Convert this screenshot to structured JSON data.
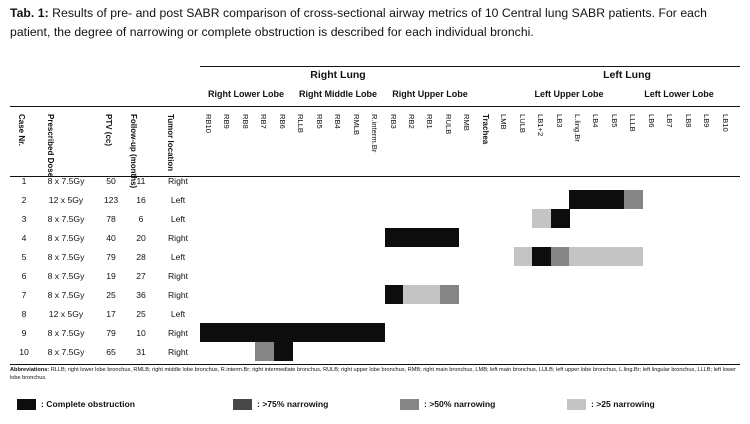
{
  "caption": {
    "label": "Tab. 1:",
    "text": " Results of pre- and post SABR comparison of cross-sectional airway metrics of 10 Central lung SABR patients. For each patient, the degree of narrowing or complete obstruction is described for each individual bronchi."
  },
  "colors": {
    "complete": "#0d0d0d",
    "n75": "#474747",
    "n50": "#858585",
    "n25": "#c4c4c4"
  },
  "groups": {
    "right_lung": "Right Lung",
    "left_lung": "Left Lung",
    "right_lower": "Right Lower Lobe",
    "right_middle": "Right Middle Lobe",
    "right_upper": "Right Upper Lobe",
    "left_upper": "Left Upper Lobe",
    "left_lower": "Left Lower Lobe"
  },
  "headers": {
    "case": "Case Nr.",
    "dose": "Prescribed Dose",
    "ptv": "PTV (cc)",
    "followup": "Follow-up (months)",
    "location": "Tumor location"
  },
  "bronchi": [
    "RB10",
    "RB9",
    "RB8",
    "RB7",
    "RB6",
    "RLLB",
    "RB5",
    "RB4",
    "RMLB",
    "R.interm.Br",
    "RB3",
    "RB2",
    "RB1",
    "RULB",
    "RMB",
    "Trachea",
    "LMB",
    "LULB",
    "LB1+2",
    "LB3",
    "L.ling.Br",
    "LB4",
    "LB5",
    "LLLB",
    "LB6",
    "LB7",
    "LB8",
    "LB9",
    "LB10"
  ],
  "patients": [
    {
      "case": "1",
      "dose": "8 x 7.5Gy",
      "ptv": "50",
      "followup": "11",
      "location": "Right",
      "cells": []
    },
    {
      "case": "2",
      "dose": "12 x 5Gy",
      "ptv": "123",
      "followup": "16",
      "location": "Left",
      "cells": [
        [
          "L.ling.Br",
          "complete"
        ],
        [
          "LB4",
          "complete"
        ],
        [
          "LB5",
          "complete"
        ],
        [
          "LLLB",
          "n50"
        ]
      ]
    },
    {
      "case": "3",
      "dose": "8 x 7.5Gy",
      "ptv": "78",
      "followup": "6",
      "location": "Left",
      "cells": [
        [
          "LB1+2",
          "n25"
        ],
        [
          "LB3",
          "complete"
        ]
      ]
    },
    {
      "case": "4",
      "dose": "8 x 7.5Gy",
      "ptv": "40",
      "followup": "20",
      "location": "Right",
      "cells": [
        [
          "RB3",
          "complete"
        ],
        [
          "RB2",
          "complete"
        ],
        [
          "RB1",
          "complete"
        ],
        [
          "RULB",
          "complete"
        ]
      ]
    },
    {
      "case": "5",
      "dose": "8 x 7.5Gy",
      "ptv": "79",
      "followup": "28",
      "location": "Left",
      "cells": [
        [
          "LULB",
          "n25"
        ],
        [
          "LB1+2",
          "complete"
        ],
        [
          "LB3",
          "n50"
        ],
        [
          "L.ling.Br",
          "n25"
        ],
        [
          "LB4",
          "n25"
        ],
        [
          "LB5",
          "n25"
        ],
        [
          "LLLB",
          "n25"
        ]
      ]
    },
    {
      "case": "6",
      "dose": "8 x 7.5Gy",
      "ptv": "19",
      "followup": "27",
      "location": "Right",
      "cells": []
    },
    {
      "case": "7",
      "dose": "8 x 7.5Gy",
      "ptv": "25",
      "followup": "36",
      "location": "Right",
      "cells": [
        [
          "RB3",
          "complete"
        ],
        [
          "RB2",
          "n25"
        ],
        [
          "RB1",
          "n25"
        ],
        [
          "RULB",
          "n50"
        ]
      ]
    },
    {
      "case": "8",
      "dose": "12 x 5Gy",
      "ptv": "17",
      "followup": "25",
      "location": "Left",
      "cells": []
    },
    {
      "case": "9",
      "dose": "8 x 7.5Gy",
      "ptv": "79",
      "followup": "10",
      "location": "Right",
      "cells": [
        [
          "RB10",
          "complete"
        ],
        [
          "RB9",
          "complete"
        ],
        [
          "RB8",
          "complete"
        ],
        [
          "RB7",
          "complete"
        ],
        [
          "RB6",
          "complete"
        ],
        [
          "RLLB",
          "complete"
        ],
        [
          "RB5",
          "complete"
        ],
        [
          "RB4",
          "complete"
        ],
        [
          "RMLB",
          "complete"
        ],
        [
          "R.interm.Br",
          "complete"
        ]
      ]
    },
    {
      "case": "10",
      "dose": "8 x 7.5Gy",
      "ptv": "65",
      "followup": "31",
      "location": "Right",
      "cells": [
        [
          "RB7",
          "n50"
        ],
        [
          "RB6",
          "complete"
        ]
      ]
    }
  ],
  "abbreviations": {
    "label": "Abbreviations:",
    "text": " RLLB; right lower lobe bronchus, RMLB; right middle lobe bronchus, R.interm.Br; right intermediate bronchus, RULB; right upper lobe bronchus, RMB; right main bronchus, LMB; left main bronchus, LULB; left upper lobe bronchus, L.ling.Br; left lingular bronchus, LLLB; left lower lobe bronchus."
  },
  "legend": [
    {
      "key": "complete",
      "label": ": Complete obstruction"
    },
    {
      "key": "n75",
      "label": ": >75% narrowing"
    },
    {
      "key": "n50",
      "label": ": >50% narrowing"
    },
    {
      "key": "n25",
      "label": ": >25 narrowing"
    }
  ]
}
